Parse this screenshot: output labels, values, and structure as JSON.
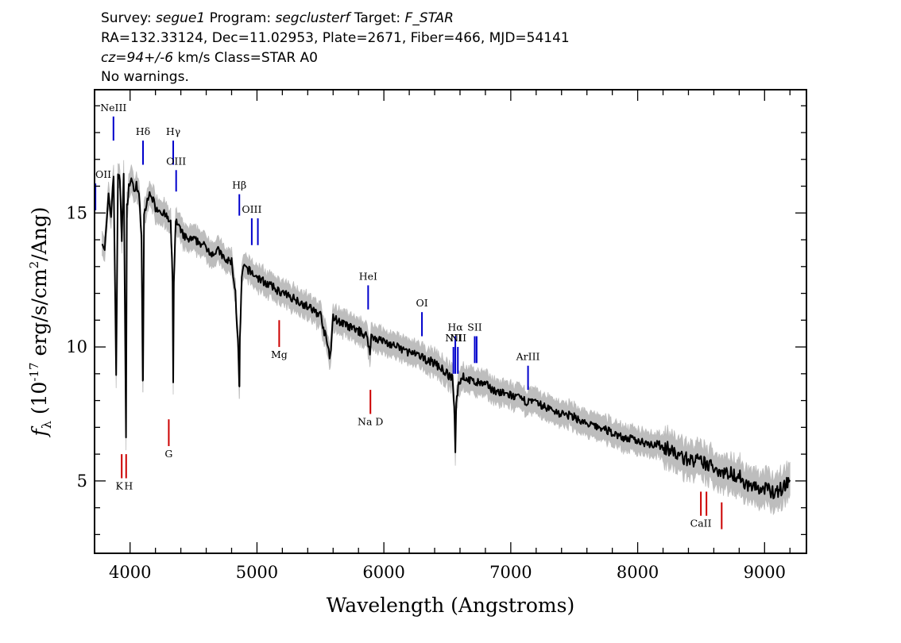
{
  "header": {
    "line1": {
      "survey_label": "Survey:",
      "survey_value": "segue1",
      "program_label": "Program:",
      "program_value": "segclusterf",
      "target_label": "Target:",
      "target_value": "F_STAR"
    },
    "line2": "RA=132.33124, Dec=11.02953, Plate=2671, Fiber=466, MJD=54141",
    "line3": {
      "cz_value": "cz=94+/-6",
      "cz_rest": "km/s Class=STAR A0"
    },
    "line4": "No warnings."
  },
  "chart_data": {
    "type": "line",
    "xlabel": "Wavelength (Angstroms)",
    "ylabel": "f_λ (10^-17 erg/s/cm^2/Ang)",
    "xlim": [
      3720,
      9330
    ],
    "ylim": [
      2.3,
      19.6
    ],
    "x_ticks": [
      4000,
      5000,
      6000,
      7000,
      8000,
      9000
    ],
    "x_tick_labels": [
      "4000",
      "5000",
      "6000",
      "7000",
      "8000",
      "9000"
    ],
    "y_ticks": [
      5,
      10,
      15
    ],
    "y_tick_labels": [
      "5",
      "10",
      "15"
    ],
    "colors": {
      "flux": "#000000",
      "error_band": "#bdbdbd",
      "emission_marker": "#0000cc",
      "absorption_marker": "#cc0000"
    },
    "series": [
      {
        "role": "flux",
        "x": [
          3780,
          3800,
          3830,
          3850,
          3870,
          3890,
          3905,
          3920,
          3935,
          3950,
          3962,
          3968,
          3975,
          3990,
          4010,
          4030,
          4050,
          4070,
          4090,
          4100,
          4102,
          4110,
          4130,
          4160,
          4200,
          4240,
          4280,
          4320,
          4335,
          4340,
          4345,
          4360,
          4400,
          4450,
          4500,
          4550,
          4600,
          4650,
          4700,
          4750,
          4800,
          4830,
          4850,
          4860,
          4862,
          4865,
          4880,
          4900,
          4950,
          5000,
          5100,
          5200,
          5300,
          5400,
          5500,
          5578,
          5600,
          5700,
          5800,
          5870,
          5890,
          5900,
          6000,
          6100,
          6200,
          6300,
          6400,
          6500,
          6540,
          6555,
          6563,
          6570,
          6585,
          6620,
          6700,
          6800,
          6900,
          7000,
          7100,
          7200,
          7300,
          7400,
          7500,
          7600,
          7700,
          7800,
          7900,
          8000,
          8100,
          8200,
          8300,
          8400,
          8500,
          8600,
          8700,
          8800,
          8850,
          8900,
          8950,
          9000,
          9050,
          9100,
          9150,
          9200
        ],
        "y": [
          14.0,
          13.6,
          15.6,
          14.9,
          16.5,
          9.0,
          16.5,
          16.2,
          14.0,
          16.6,
          9.8,
          6.5,
          15.2,
          16.0,
          16.3,
          15.8,
          16.1,
          15.6,
          14.2,
          8.7,
          8.7,
          15.0,
          15.3,
          15.8,
          15.2,
          15.1,
          14.9,
          14.6,
          12.5,
          8.6,
          12.5,
          14.7,
          14.3,
          14.0,
          14.0,
          13.9,
          13.7,
          13.5,
          13.6,
          13.2,
          13.2,
          12.0,
          10.2,
          8.5,
          8.5,
          10.2,
          12.6,
          13.0,
          12.8,
          12.6,
          12.3,
          12.0,
          11.8,
          11.5,
          11.2,
          9.6,
          11.1,
          10.8,
          10.6,
          10.4,
          9.7,
          10.4,
          10.2,
          10.0,
          9.8,
          9.6,
          9.4,
          9.0,
          8.8,
          7.8,
          6.0,
          7.8,
          8.6,
          8.9,
          8.7,
          8.6,
          8.3,
          8.2,
          8.0,
          7.9,
          7.7,
          7.5,
          7.4,
          7.1,
          7.0,
          6.8,
          6.6,
          6.5,
          6.4,
          6.3,
          6.0,
          5.8,
          5.7,
          5.5,
          5.3,
          5.2,
          4.9,
          4.8,
          4.7,
          4.7,
          4.6,
          4.6,
          4.8,
          5.0
        ]
      }
    ],
    "line_markers": [
      {
        "label": "OII",
        "wavelength": 3727,
        "color": "blue",
        "ytop": 16.1,
        "ybot": 15.1,
        "label_pos": "above"
      },
      {
        "label": "NeIII",
        "wavelength": 3869,
        "color": "blue",
        "ytop": 18.6,
        "ybot": 17.7,
        "label_pos": "above"
      },
      {
        "label": "Hδ",
        "wavelength": 4102,
        "color": "blue",
        "ytop": 17.7,
        "ybot": 16.8,
        "label_pos": "above"
      },
      {
        "label": "Hγ",
        "wavelength": 4340,
        "color": "blue",
        "ytop": 17.7,
        "ybot": 16.8,
        "label_pos": "above"
      },
      {
        "label": "OIII",
        "wavelength": 4363,
        "color": "blue",
        "ytop": 16.6,
        "ybot": 15.8,
        "label_pos": "above"
      },
      {
        "label": "Hβ",
        "wavelength": 4861,
        "color": "blue",
        "ytop": 15.7,
        "ybot": 14.9,
        "label_pos": "above"
      },
      {
        "label": "OIII",
        "wavelength": 4959,
        "color": "blue",
        "ytop": 14.8,
        "ybot": 13.8,
        "label_pos": "above"
      },
      {
        "label": "",
        "wavelength": 5007,
        "color": "blue",
        "ytop": 14.8,
        "ybot": 13.8,
        "label_pos": "above"
      },
      {
        "label": "HeI",
        "wavelength": 5876,
        "color": "blue",
        "ytop": 12.3,
        "ybot": 11.4,
        "label_pos": "above"
      },
      {
        "label": "OI",
        "wavelength": 6300,
        "color": "blue",
        "ytop": 11.3,
        "ybot": 10.4,
        "label_pos": "above"
      },
      {
        "label": "NII",
        "wavelength": 6548,
        "color": "blue",
        "ytop": 10.0,
        "ybot": 9.0,
        "label_pos": "above"
      },
      {
        "label": "Hα",
        "wavelength": 6563,
        "color": "blue",
        "ytop": 10.4,
        "ybot": 9.0,
        "label_pos": "above"
      },
      {
        "label": "NII",
        "wavelength": 6583,
        "color": "blue",
        "ytop": 10.0,
        "ybot": 9.0,
        "label_pos": "above_right"
      },
      {
        "label": "SII",
        "wavelength": 6716,
        "color": "blue",
        "ytop": 10.4,
        "ybot": 9.4,
        "label_pos": "above"
      },
      {
        "label": "",
        "wavelength": 6731,
        "color": "blue",
        "ytop": 10.4,
        "ybot": 9.4,
        "label_pos": "above"
      },
      {
        "label": "ArIII",
        "wavelength": 7136,
        "color": "blue",
        "ytop": 9.3,
        "ybot": 8.4,
        "label_pos": "above"
      },
      {
        "label": "K",
        "wavelength": 3934,
        "color": "red",
        "ytop": 6.0,
        "ybot": 5.1,
        "label_pos": "below"
      },
      {
        "label": "H",
        "wavelength": 3969,
        "color": "red",
        "ytop": 6.0,
        "ybot": 5.1,
        "label_pos": "below"
      },
      {
        "label": "G",
        "wavelength": 4305,
        "color": "red",
        "ytop": 7.3,
        "ybot": 6.3,
        "label_pos": "below"
      },
      {
        "label": "Mg",
        "wavelength": 5175,
        "color": "red",
        "ytop": 11.0,
        "ybot": 10.0,
        "label_pos": "below"
      },
      {
        "label": "Na D",
        "wavelength": 5894,
        "color": "red",
        "ytop": 8.4,
        "ybot": 7.5,
        "label_pos": "below"
      },
      {
        "label": "CaII",
        "wavelength": 8498,
        "color": "red",
        "ytop": 4.6,
        "ybot": 3.7,
        "label_pos": "below"
      },
      {
        "label": "",
        "wavelength": 8542,
        "color": "red",
        "ytop": 4.6,
        "ybot": 3.7,
        "label_pos": "below"
      },
      {
        "label": "",
        "wavelength": 8662,
        "color": "red",
        "ytop": 4.2,
        "ybot": 3.2,
        "label_pos": "below"
      }
    ]
  }
}
